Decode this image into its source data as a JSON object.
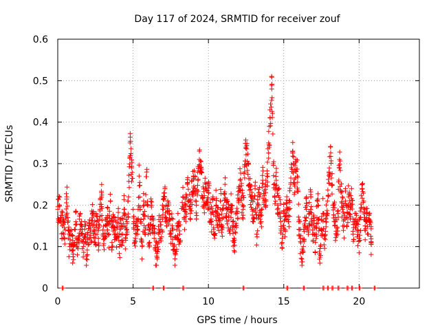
{
  "chart_data": {
    "type": "scatter",
    "title": "Day 117 of 2024, SRMTID for receiver zouf",
    "xlabel": "GPS time / hours",
    "ylabel": "SRMTID / TECUs",
    "xlim": [
      0,
      24
    ],
    "ylim": [
      0,
      0.6
    ],
    "xticks": [
      0,
      5,
      10,
      15,
      20
    ],
    "yticks": [
      0,
      0.1,
      0.2,
      0.3,
      0.4,
      0.5,
      0.6
    ],
    "grid": true,
    "marker": "+",
    "color": "#ff0000",
    "series": [
      {
        "name": "SRMTID",
        "points": [
          [
            0.0,
            0.19
          ],
          [
            0.1,
            0.2
          ],
          [
            0.2,
            0.17
          ],
          [
            0.3,
            0.15
          ],
          [
            0.4,
            0.13
          ],
          [
            0.5,
            0.14
          ],
          [
            0.6,
            0.22
          ],
          [
            0.7,
            0.12
          ],
          [
            0.8,
            0.1
          ],
          [
            0.9,
            0.14
          ],
          [
            1.0,
            0.09
          ],
          [
            1.1,
            0.11
          ],
          [
            1.2,
            0.16
          ],
          [
            1.3,
            0.08
          ],
          [
            1.4,
            0.12
          ],
          [
            1.5,
            0.18
          ],
          [
            1.6,
            0.13
          ],
          [
            1.7,
            0.1
          ],
          [
            1.8,
            0.16
          ],
          [
            1.9,
            0.07
          ],
          [
            2.0,
            0.12
          ],
          [
            2.1,
            0.15
          ],
          [
            2.2,
            0.11
          ],
          [
            2.3,
            0.18
          ],
          [
            2.4,
            0.14
          ],
          [
            2.5,
            0.13
          ],
          [
            2.6,
            0.16
          ],
          [
            2.7,
            0.12
          ],
          [
            2.8,
            0.19
          ],
          [
            2.9,
            0.23
          ],
          [
            3.0,
            0.14
          ],
          [
            3.1,
            0.12
          ],
          [
            3.2,
            0.15
          ],
          [
            3.3,
            0.17
          ],
          [
            3.4,
            0.13
          ],
          [
            3.5,
            0.21
          ],
          [
            3.6,
            0.11
          ],
          [
            3.7,
            0.16
          ],
          [
            3.8,
            0.14
          ],
          [
            3.9,
            0.12
          ],
          [
            4.0,
            0.17
          ],
          [
            4.1,
            0.1
          ],
          [
            4.2,
            0.15
          ],
          [
            4.3,
            0.13
          ],
          [
            4.4,
            0.19
          ],
          [
            4.5,
            0.12
          ],
          [
            4.6,
            0.16
          ],
          [
            4.7,
            0.22
          ],
          [
            4.8,
            0.35
          ],
          [
            4.9,
            0.29
          ],
          [
            5.0,
            0.19
          ],
          [
            5.1,
            0.11
          ],
          [
            5.2,
            0.15
          ],
          [
            5.3,
            0.13
          ],
          [
            5.4,
            0.27
          ],
          [
            5.5,
            0.16
          ],
          [
            5.6,
            0.1
          ],
          [
            5.7,
            0.21
          ],
          [
            5.8,
            0.14
          ],
          [
            5.9,
            0.28
          ],
          [
            6.0,
            0.13
          ],
          [
            6.1,
            0.11
          ],
          [
            6.2,
            0.2
          ],
          [
            6.3,
            0.15
          ],
          [
            6.4,
            0.12
          ],
          [
            6.5,
            0.09
          ],
          [
            6.6,
            0.07
          ],
          [
            6.7,
            0.13
          ],
          [
            6.8,
            0.16
          ],
          [
            6.9,
            0.14
          ],
          [
            7.0,
            0.19
          ],
          [
            7.1,
            0.22
          ],
          [
            7.2,
            0.17
          ],
          [
            7.3,
            0.21
          ],
          [
            7.4,
            0.18
          ],
          [
            7.5,
            0.13
          ],
          [
            7.6,
            0.15
          ],
          [
            7.7,
            0.1
          ],
          [
            7.8,
            0.08
          ],
          [
            7.9,
            0.12
          ],
          [
            8.0,
            0.15
          ],
          [
            8.1,
            0.13
          ],
          [
            8.3,
            0.22
          ],
          [
            8.4,
            0.17
          ],
          [
            8.5,
            0.19
          ],
          [
            8.6,
            0.25
          ],
          [
            8.7,
            0.21
          ],
          [
            8.8,
            0.18
          ],
          [
            8.9,
            0.23
          ],
          [
            9.0,
            0.27
          ],
          [
            9.1,
            0.24
          ],
          [
            9.2,
            0.2
          ],
          [
            9.3,
            0.26
          ],
          [
            9.4,
            0.31
          ],
          [
            9.5,
            0.28
          ],
          [
            9.6,
            0.22
          ],
          [
            9.7,
            0.2
          ],
          [
            9.8,
            0.24
          ],
          [
            9.9,
            0.21
          ],
          [
            10.0,
            0.23
          ],
          [
            10.1,
            0.19
          ],
          [
            10.2,
            0.16
          ],
          [
            10.3,
            0.22
          ],
          [
            10.4,
            0.13
          ],
          [
            10.5,
            0.2
          ],
          [
            10.6,
            0.18
          ],
          [
            10.7,
            0.17
          ],
          [
            10.8,
            0.21
          ],
          [
            10.9,
            0.15
          ],
          [
            11.0,
            0.2
          ],
          [
            11.1,
            0.25
          ],
          [
            11.2,
            0.17
          ],
          [
            11.3,
            0.19
          ],
          [
            11.4,
            0.14
          ],
          [
            11.5,
            0.2
          ],
          [
            11.6,
            0.16
          ],
          [
            11.7,
            0.11
          ],
          [
            11.8,
            0.15
          ],
          [
            11.9,
            0.18
          ],
          [
            12.0,
            0.21
          ],
          [
            12.1,
            0.26
          ],
          [
            12.2,
            0.22
          ],
          [
            12.3,
            0.19
          ],
          [
            12.4,
            0.28
          ],
          [
            12.5,
            0.34
          ],
          [
            12.6,
            0.3
          ],
          [
            12.7,
            0.25
          ],
          [
            12.8,
            0.22
          ],
          [
            12.9,
            0.19
          ],
          [
            13.0,
            0.17
          ],
          [
            13.1,
            0.24
          ],
          [
            13.2,
            0.13
          ],
          [
            13.3,
            0.2
          ],
          [
            13.4,
            0.22
          ],
          [
            13.5,
            0.16
          ],
          [
            13.6,
            0.26
          ],
          [
            13.7,
            0.21
          ],
          [
            13.8,
            0.23
          ],
          [
            13.9,
            0.27
          ],
          [
            14.0,
            0.35
          ],
          [
            14.1,
            0.41
          ],
          [
            14.2,
            0.48
          ],
          [
            14.3,
            0.3
          ],
          [
            14.4,
            0.22
          ],
          [
            14.5,
            0.26
          ],
          [
            14.6,
            0.2
          ],
          [
            14.7,
            0.24
          ],
          [
            14.8,
            0.16
          ],
          [
            14.9,
            0.12
          ],
          [
            15.0,
            0.18
          ],
          [
            15.1,
            0.14
          ],
          [
            15.2,
            0.19
          ],
          [
            15.3,
            0.16
          ],
          [
            15.4,
            0.21
          ],
          [
            15.5,
            0.29
          ],
          [
            15.6,
            0.33
          ],
          [
            15.7,
            0.25
          ],
          [
            15.8,
            0.31
          ],
          [
            15.9,
            0.27
          ],
          [
            16.0,
            0.16
          ],
          [
            16.1,
            0.12
          ],
          [
            16.2,
            0.07
          ],
          [
            16.3,
            0.1
          ],
          [
            16.4,
            0.15
          ],
          [
            16.5,
            0.19
          ],
          [
            16.6,
            0.14
          ],
          [
            16.7,
            0.18
          ],
          [
            16.8,
            0.22
          ],
          [
            16.9,
            0.13
          ],
          [
            17.0,
            0.15
          ],
          [
            17.1,
            0.11
          ],
          [
            17.2,
            0.17
          ],
          [
            17.3,
            0.2
          ],
          [
            17.4,
            0.06
          ],
          [
            17.5,
            0.14
          ],
          [
            17.6,
            0.18
          ],
          [
            17.7,
            0.12
          ],
          [
            17.8,
            0.16
          ],
          [
            17.9,
            0.21
          ],
          [
            18.0,
            0.28
          ],
          [
            18.1,
            0.34
          ],
          [
            18.2,
            0.25
          ],
          [
            18.3,
            0.2
          ],
          [
            18.4,
            0.16
          ],
          [
            18.5,
            0.13
          ],
          [
            18.6,
            0.18
          ],
          [
            18.7,
            0.31
          ],
          [
            18.8,
            0.23
          ],
          [
            18.9,
            0.19
          ],
          [
            19.0,
            0.15
          ],
          [
            19.1,
            0.21
          ],
          [
            19.2,
            0.17
          ],
          [
            19.3,
            0.22
          ],
          [
            19.4,
            0.19
          ],
          [
            19.5,
            0.24
          ],
          [
            19.6,
            0.13
          ],
          [
            19.7,
            0.16
          ],
          [
            19.8,
            0.18
          ],
          [
            19.9,
            0.14
          ],
          [
            20.0,
            0.12
          ],
          [
            20.1,
            0.17
          ],
          [
            20.2,
            0.25
          ],
          [
            20.3,
            0.21
          ],
          [
            20.4,
            0.15
          ],
          [
            20.5,
            0.18
          ],
          [
            20.6,
            0.13
          ],
          [
            20.7,
            0.16
          ],
          [
            20.8,
            0.11
          ]
        ],
        "zero_points": [
          0.3,
          6.3,
          7.0,
          8.3,
          12.3,
          15.2,
          16.3,
          17.6,
          17.9,
          18.2,
          18.6,
          19.2,
          19.5,
          20.0,
          21.0
        ]
      }
    ]
  }
}
